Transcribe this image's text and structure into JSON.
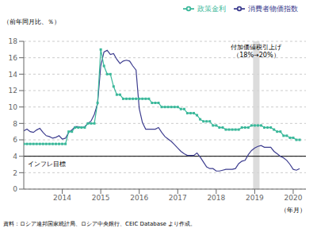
{
  "chart_data": {
    "type": "line",
    "y_label": "（前年同月比、％）",
    "x_label": "（年月）",
    "source": "資料：ロシア連邦国家統計局、ロシア中央銀行、CEIC Database より作成。",
    "x": [
      2013.0,
      2013.083,
      2013.167,
      2013.25,
      2013.333,
      2013.417,
      2013.5,
      2013.583,
      2013.667,
      2013.75,
      2013.833,
      2013.917,
      2014.0,
      2014.083,
      2014.167,
      2014.25,
      2014.333,
      2014.417,
      2014.5,
      2014.583,
      2014.667,
      2014.75,
      2014.833,
      2014.917,
      2015.0,
      2015.083,
      2015.167,
      2015.25,
      2015.333,
      2015.417,
      2015.5,
      2015.583,
      2015.667,
      2015.75,
      2015.833,
      2015.917,
      2016.0,
      2016.083,
      2016.167,
      2016.25,
      2016.333,
      2016.417,
      2016.5,
      2016.583,
      2016.667,
      2016.75,
      2016.833,
      2016.917,
      2017.0,
      2017.083,
      2017.167,
      2017.25,
      2017.333,
      2017.417,
      2017.5,
      2017.583,
      2017.667,
      2017.75,
      2017.833,
      2017.917,
      2018.0,
      2018.083,
      2018.167,
      2018.25,
      2018.333,
      2018.417,
      2018.5,
      2018.583,
      2018.667,
      2018.75,
      2018.833,
      2018.917,
      2019.0,
      2019.083,
      2019.167,
      2019.25,
      2019.333,
      2019.417,
      2019.5,
      2019.583,
      2019.667,
      2019.75,
      2019.833,
      2019.917,
      2020.0,
      2020.083,
      2020.167
    ],
    "series": [
      {
        "name": "消費者物価指数",
        "color": "#3d3d8f",
        "values": [
          7.1,
          7.3,
          7.0,
          6.9,
          7.2,
          7.4,
          6.9,
          6.5,
          6.4,
          6.2,
          6.3,
          6.5,
          6.1,
          6.2,
          6.9,
          7.2,
          7.6,
          7.6,
          7.5,
          7.6,
          8.0,
          8.3,
          9.1,
          10.4,
          15.0,
          16.7,
          16.9,
          16.4,
          16.5,
          15.8,
          15.3,
          15.6,
          15.7,
          15.6,
          15.0,
          14.5,
          9.8,
          8.1,
          7.3,
          7.3,
          7.3,
          7.3,
          7.5,
          6.9,
          6.4,
          6.1,
          5.8,
          5.4,
          5.0,
          4.6,
          4.3,
          4.1,
          4.1,
          4.1,
          4.4,
          3.9,
          3.3,
          2.7,
          2.5,
          2.5,
          2.2,
          2.2,
          2.3,
          2.4,
          2.4,
          2.4,
          2.5,
          3.1,
          3.4,
          3.5,
          4.2,
          4.7,
          5.0,
          5.2,
          5.3,
          5.1,
          5.1,
          5.1,
          4.6,
          4.3,
          4.0,
          3.8,
          3.5,
          3.0,
          2.4,
          2.3,
          2.5
        ]
      },
      {
        "name": "政策金利",
        "color": "#3ab89a",
        "marker": "square",
        "values": [
          5.5,
          5.5,
          5.5,
          5.5,
          5.5,
          5.5,
          5.5,
          5.5,
          5.5,
          5.5,
          5.5,
          5.5,
          5.5,
          5.5,
          7.0,
          7.0,
          7.5,
          7.5,
          7.5,
          7.5,
          8.0,
          8.0,
          8.0,
          10.5,
          17.0,
          15.0,
          14.0,
          14.0,
          12.5,
          11.5,
          11.5,
          11.0,
          11.0,
          11.0,
          11.0,
          11.0,
          11.0,
          11.0,
          11.0,
          11.0,
          10.5,
          10.5,
          10.5,
          10.0,
          10.0,
          10.0,
          10.0,
          10.0,
          10.0,
          9.75,
          9.75,
          9.25,
          9.25,
          9.25,
          9.0,
          8.5,
          8.25,
          8.25,
          8.25,
          7.75,
          7.75,
          7.5,
          7.5,
          7.25,
          7.25,
          7.25,
          7.25,
          7.25,
          7.5,
          7.5,
          7.5,
          7.75,
          7.75,
          7.75,
          7.75,
          7.5,
          7.5,
          7.5,
          7.25,
          7.0,
          7.0,
          6.5,
          6.5,
          6.25,
          6.25,
          6.0,
          6.0
        ]
      }
    ],
    "xlim": [
      2013.0,
      2020.33
    ],
    "xticks": [
      2014,
      2015,
      2016,
      2017,
      2018,
      2019,
      2020
    ],
    "ylim": [
      0,
      18
    ],
    "yticks": [
      0,
      2,
      4,
      6,
      8,
      10,
      12,
      14,
      16,
      18
    ],
    "grid": true,
    "legend": "upper right",
    "annotations": [
      {
        "type": "hline",
        "y": 4.0,
        "text": "インフレ目標"
      },
      {
        "type": "span",
        "x": [
          2018.958,
          2019.125
        ],
        "text": "付加価値税引上げ\n（18%→20%）"
      }
    ]
  }
}
